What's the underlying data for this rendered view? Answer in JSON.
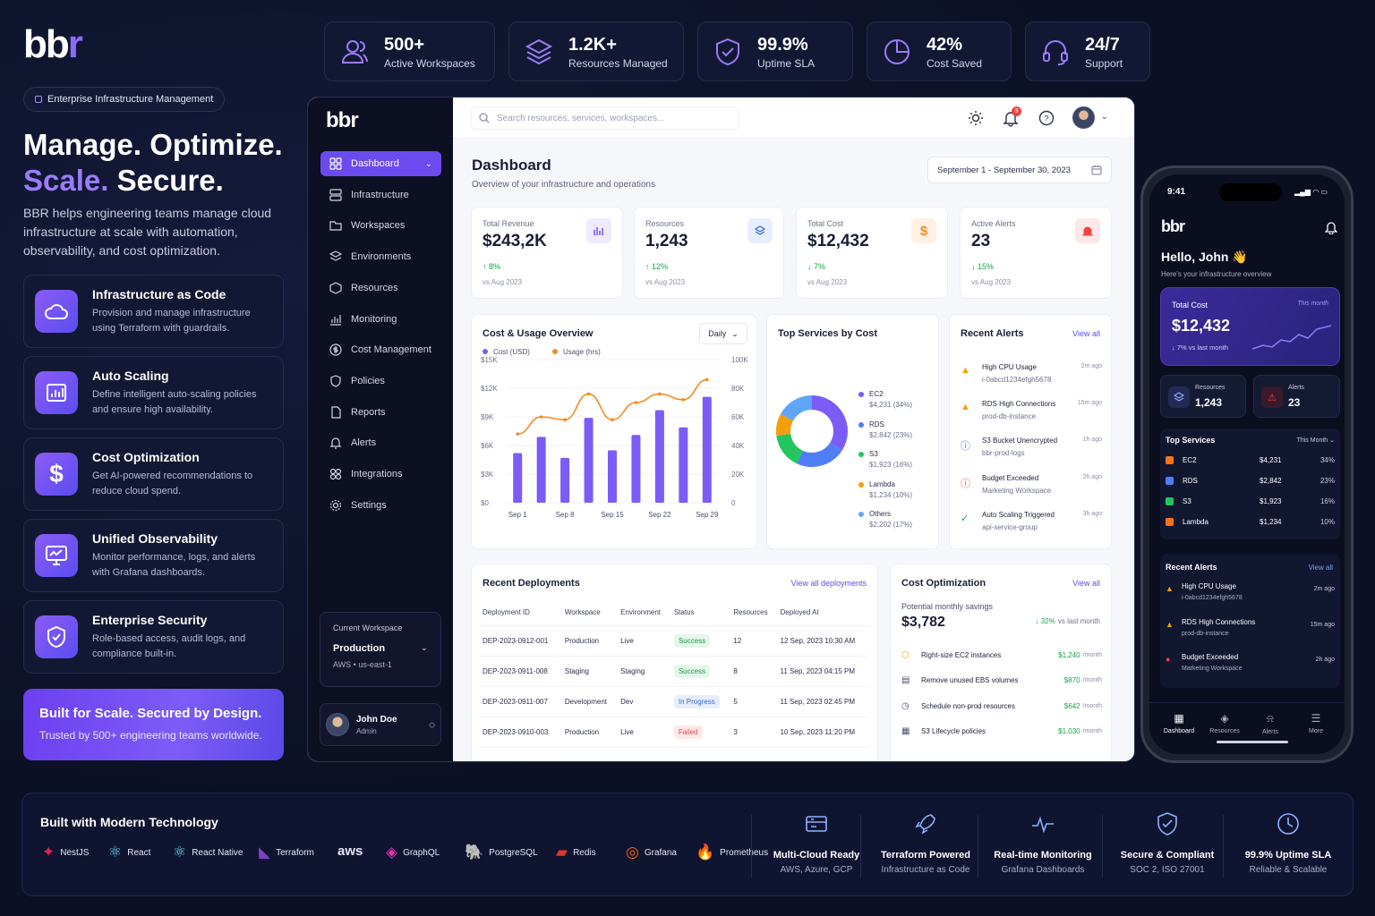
{
  "brand": {
    "logo_a": "bb",
    "logo_b": "r",
    "badge": "Enterprise Infrastructure Management"
  },
  "hero": {
    "line1": "Manage. Optimize.",
    "line2a": "Scale.",
    "line2b": " Secure.",
    "desc": "BBR helps engineering teams manage cloud infrastructure at scale with automation, observability, and cost optimization."
  },
  "features": [
    {
      "title": "Infrastructure as Code",
      "desc": "Provision and manage infrastructure using Terraform with guardrails.",
      "icon": "cloud-icon"
    },
    {
      "title": "Auto Scaling",
      "desc": "Define intelligent auto-scaling policies and ensure high availability.",
      "icon": "bar-chart-icon"
    },
    {
      "title": "Cost Optimization",
      "desc": "Get AI-powered recommendations to reduce cloud spend.",
      "icon": "dollar-icon"
    },
    {
      "title": "Unified Observability",
      "desc": "Monitor performance, logs, and alerts with Grafana dashboards.",
      "icon": "monitor-icon"
    },
    {
      "title": "Enterprise Security",
      "desc": "Role-based access, audit logs, and compliance built-in.",
      "icon": "shield-icon"
    }
  ],
  "cta": {
    "title": "Built for Scale. Secured by Design.",
    "sub": "Trusted by 500+ engineering teams worldwide."
  },
  "stats": [
    {
      "value": "500+",
      "label": "Active Workspaces",
      "icon": "users-icon"
    },
    {
      "value": "1.2K+",
      "label": "Resources Managed",
      "icon": "layers-icon"
    },
    {
      "value": "99.9%",
      "label": "Uptime SLA",
      "icon": "shield-check-icon"
    },
    {
      "value": "42%",
      "label": "Cost Saved",
      "icon": "pie-icon"
    },
    {
      "value": "24/7",
      "label": "Support",
      "icon": "headset-icon"
    }
  ],
  "app": {
    "logo": "bbr",
    "nav": [
      "Dashboard",
      "Infrastructure",
      "Workspaces",
      "Environments",
      "Resources",
      "Monitoring",
      "Cost Management",
      "Policies",
      "Reports",
      "Alerts",
      "Integrations",
      "Settings"
    ],
    "workspace": {
      "label": "Current Workspace",
      "name": "Production",
      "region": "AWS • us-east-1"
    },
    "user": {
      "name": "John Doe",
      "role": "Admin"
    },
    "search_placeholder": "Search resources, services, workspaces...",
    "notif_count": "3",
    "title": "Dashboard",
    "subtitle": "Overview of your infrastructure and operations",
    "date_range": "September 1 - September 30, 2023",
    "kpis": [
      {
        "label": "Total Revenue",
        "value": "$243,2K",
        "change": "↑ 8%",
        "since": "vs Aug 2023",
        "up": true
      },
      {
        "label": "Resources",
        "value": "1,243",
        "change": "↑ 12%",
        "since": "vs Aug 2023",
        "up": true
      },
      {
        "label": "Total Cost",
        "value": "$12,432",
        "change": "↓ 7%",
        "since": "vs Aug 2023",
        "up": false
      },
      {
        "label": "Active Alerts",
        "value": "23",
        "change": "↓ 15%",
        "since": "vs Aug 2023",
        "up": false
      }
    ],
    "usage_title": "Cost & Usage Overview",
    "usage_period": "Daily",
    "services_title": "Top Services by Cost",
    "services": [
      {
        "name": "EC2",
        "value": "$4,231 (34%)",
        "color": "#7c5cf6",
        "pct": 34
      },
      {
        "name": "RDS",
        "value": "$2,842 (23%)",
        "color": "#4f7ef7",
        "pct": 23
      },
      {
        "name": "S3",
        "value": "$1,923 (16%)",
        "color": "#22c55e",
        "pct": 16
      },
      {
        "name": "Lambda",
        "value": "$1,234 (10%)",
        "color": "#f59e0b",
        "pct": 10
      },
      {
        "name": "Others",
        "value": "$2,202 (17%)",
        "color": "#60a5fa",
        "pct": 17
      }
    ],
    "alerts_title": "Recent Alerts",
    "alerts_link": "View all",
    "alerts": [
      {
        "title": "High CPU Usage",
        "sub": "i-0abcd1234efgh5678",
        "time": "2m ago",
        "kind": "warning"
      },
      {
        "title": "RDS High Connections",
        "sub": "prod-db-instance",
        "time": "15m ago",
        "kind": "warning"
      },
      {
        "title": "S3 Bucket Unencrypted",
        "sub": "bbr-prod-logs",
        "time": "1h ago",
        "kind": "info"
      },
      {
        "title": "Budget Exceeded",
        "sub": "Marketing Workspace",
        "time": "2h ago",
        "kind": "error"
      },
      {
        "title": "Auto Scaling Triggered",
        "sub": "api-service-group",
        "time": "3h ago",
        "kind": "success"
      }
    ],
    "deploy_title": "Recent Deployments",
    "deploy_link": "View all deployments",
    "deploy_cols": [
      "Deployment ID",
      "Workspace",
      "Environment",
      "Status",
      "Resources",
      "Deployed At"
    ],
    "deploys": [
      [
        "DEP-2023-0912-001",
        "Production",
        "Live",
        "Success",
        "12",
        "12 Sep, 2023 10:30 AM"
      ],
      [
        "DEP-2023-0911-008",
        "Staging",
        "Staging",
        "Success",
        "8",
        "11 Sep, 2023 04:15 PM"
      ],
      [
        "DEP-2023-0911-007",
        "Development",
        "Dev",
        "In Progress",
        "5",
        "11 Sep, 2023 02:45 PM"
      ],
      [
        "DEP-2023-0910-003",
        "Production",
        "Live",
        "Failed",
        "3",
        "10 Sep, 2023 11:20 PM"
      ]
    ],
    "costopt_title": "Cost Optimization",
    "costopt_link": "View all",
    "savings_label": "Potential monthly savings",
    "savings_value": "$3,782",
    "savings_change": "↓ 32%",
    "savings_since": "vs last month",
    "recs": [
      {
        "name": "Right-size EC2 instances",
        "amount": "$1,240",
        "per": "/month"
      },
      {
        "name": "Remove unused EBS volumes",
        "amount": "$870",
        "per": "/month"
      },
      {
        "name": "Schedule non-prod resources",
        "amount": "$642",
        "per": "/month"
      },
      {
        "name": "S3 Lifecycle policies",
        "amount": "$1,030",
        "per": "/month"
      }
    ]
  },
  "chart_data": {
    "type": "bar+line",
    "categories": [
      "Sep 1",
      "Sep 4",
      "Sep 8",
      "Sep 11",
      "Sep 15",
      "Sep 18",
      "Sep 22",
      "Sep 25",
      "Sep 29"
    ],
    "series": [
      {
        "name": "Cost (USD)",
        "type": "bar",
        "axis": "left",
        "color": "#7c5cf6",
        "values": [
          5200,
          6900,
          4700,
          8900,
          5500,
          7100,
          9700,
          7900,
          11100
        ]
      },
      {
        "name": "Usage (hrs)",
        "type": "line",
        "axis": "right",
        "color": "#f58a1f",
        "values": [
          48000,
          60000,
          58000,
          76000,
          58000,
          70000,
          76000,
          72000,
          86000
        ]
      }
    ],
    "y_left": {
      "ticks": [
        "$0",
        "$3K",
        "$6K",
        "$9K",
        "$12K",
        "$15K"
      ],
      "range": [
        0,
        15000
      ]
    },
    "y_right": {
      "ticks": [
        "0",
        "20K",
        "40K",
        "60K",
        "80K",
        "100K"
      ],
      "range": [
        0,
        100000
      ]
    },
    "x_ticks": [
      "Sep 1",
      "Sep 8",
      "Sep 15",
      "Sep 22",
      "Sep 29"
    ],
    "legend": "top-left"
  },
  "phone": {
    "time": "9:41",
    "logo": "bbr",
    "greeting": "Hello, John 👋",
    "sub": "Here's your infrastructure overview",
    "cost_label": "Total Cost",
    "cost_value": "$12,432",
    "cost_change": "↓ 7% vs last month",
    "period_tag": "This month",
    "res_label": "Resources",
    "res_value": "1,243",
    "alert_label": "Alerts",
    "alert_value": "23",
    "top_title": "Top Services",
    "top_period": "This Month ⌄",
    "top": [
      {
        "name": "EC2",
        "amount": "$4,231",
        "pct": "34%",
        "color": "#f97316"
      },
      {
        "name": "RDS",
        "amount": "$2,842",
        "pct": "23%",
        "color": "#4f7ef7"
      },
      {
        "name": "S3",
        "amount": "$1,923",
        "pct": "16%",
        "color": "#22c55e"
      },
      {
        "name": "Lambda",
        "amount": "$1,234",
        "pct": "10%",
        "color": "#f97316"
      }
    ],
    "alerts_title": "Recent Alerts",
    "alerts_link": "View all",
    "alerts": [
      {
        "title": "High CPU Usage",
        "sub": "i-0abcd1234efgh5678",
        "time": "2m ago",
        "color": "#f59e0b"
      },
      {
        "title": "RDS High Connections",
        "sub": "prod-db-instance",
        "time": "15m ago",
        "color": "#f59e0b"
      },
      {
        "title": "Budget Exceeded",
        "sub": "Marketing Workspace",
        "time": "2h ago",
        "color": "#ef4444"
      }
    ],
    "tabs": [
      "Dashboard",
      "Resources",
      "Alerts",
      "More"
    ]
  },
  "bottom": {
    "title": "Built with Modern Technology",
    "tech": [
      {
        "name": "NestJS",
        "color": "#e0234e"
      },
      {
        "name": "React",
        "color": "#61dafb"
      },
      {
        "name": "React Native",
        "color": "#61dafb"
      },
      {
        "name": "Terraform",
        "color": "#7b42bc"
      },
      {
        "name": "aws",
        "color": "#ffffff"
      },
      {
        "name": "GraphQL",
        "color": "#e535ab"
      },
      {
        "name": "PostgreSQL",
        "color": "#6b9bd1"
      },
      {
        "name": "Redis",
        "color": "#dc382d"
      },
      {
        "name": "Grafana",
        "color": "#f46800"
      },
      {
        "name": "Prometheus",
        "color": "#e6522c"
      }
    ],
    "pillars": [
      {
        "title": "Multi-Cloud Ready",
        "sub": "AWS, Azure, GCP",
        "icon": "server-icon"
      },
      {
        "title": "Terraform Powered",
        "sub": "Infrastructure as Code",
        "icon": "rocket-icon"
      },
      {
        "title": "Real-time Monitoring",
        "sub": "Grafana Dashboards",
        "icon": "pulse-icon"
      },
      {
        "title": "Secure & Compliant",
        "sub": "SOC 2, ISO 27001",
        "icon": "shield-check-icon"
      },
      {
        "title": "99.9% Uptime SLA",
        "sub": "Reliable & Scalable",
        "icon": "clock-icon"
      }
    ]
  }
}
